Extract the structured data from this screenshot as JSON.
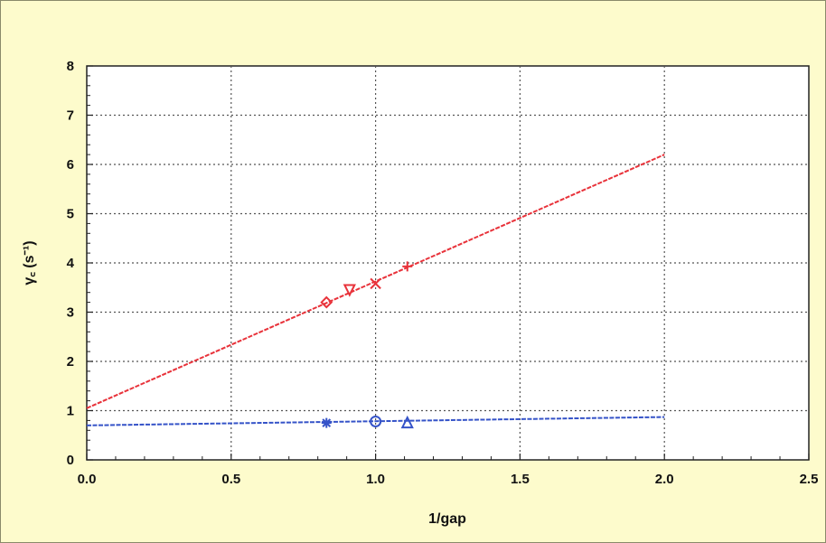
{
  "chart_data": {
    "type": "scatter",
    "xlabel": "1/gap",
    "ylabel": "γ꜀ (s⁻¹)",
    "xlim": [
      0,
      2.5
    ],
    "ylim": [
      0,
      8
    ],
    "x_ticks": [
      "0.0",
      "0.5",
      "1.0",
      "1.5",
      "2.0",
      "2.5"
    ],
    "y_ticks": [
      "0",
      "1",
      "2",
      "3",
      "4",
      "5",
      "6",
      "7",
      "8"
    ],
    "grid": true,
    "legend": "none",
    "colors": {
      "red": "#e8323a",
      "blue": "#3553c8",
      "plot_bg": "#ffffff",
      "frame_bg": "#fdfbcc"
    },
    "series": [
      {
        "color": "red",
        "fit_line": {
          "x": [
            0.0,
            2.0
          ],
          "y": [
            1.05,
            6.2
          ]
        },
        "points": [
          {
            "x": 0.83,
            "y": 3.2,
            "marker": "diamond"
          },
          {
            "x": 0.91,
            "y": 3.45,
            "marker": "triangle-down"
          },
          {
            "x": 1.0,
            "y": 3.58,
            "marker": "x"
          },
          {
            "x": 1.11,
            "y": 3.93,
            "marker": "plus"
          }
        ]
      },
      {
        "color": "blue",
        "fit_line": {
          "x": [
            0.0,
            2.0
          ],
          "y": [
            0.7,
            0.87
          ]
        },
        "points": [
          {
            "x": 0.83,
            "y": 0.75,
            "marker": "asterisk"
          },
          {
            "x": 1.0,
            "y": 0.78,
            "marker": "circle"
          },
          {
            "x": 1.11,
            "y": 0.76,
            "marker": "triangle-up"
          }
        ]
      }
    ]
  }
}
